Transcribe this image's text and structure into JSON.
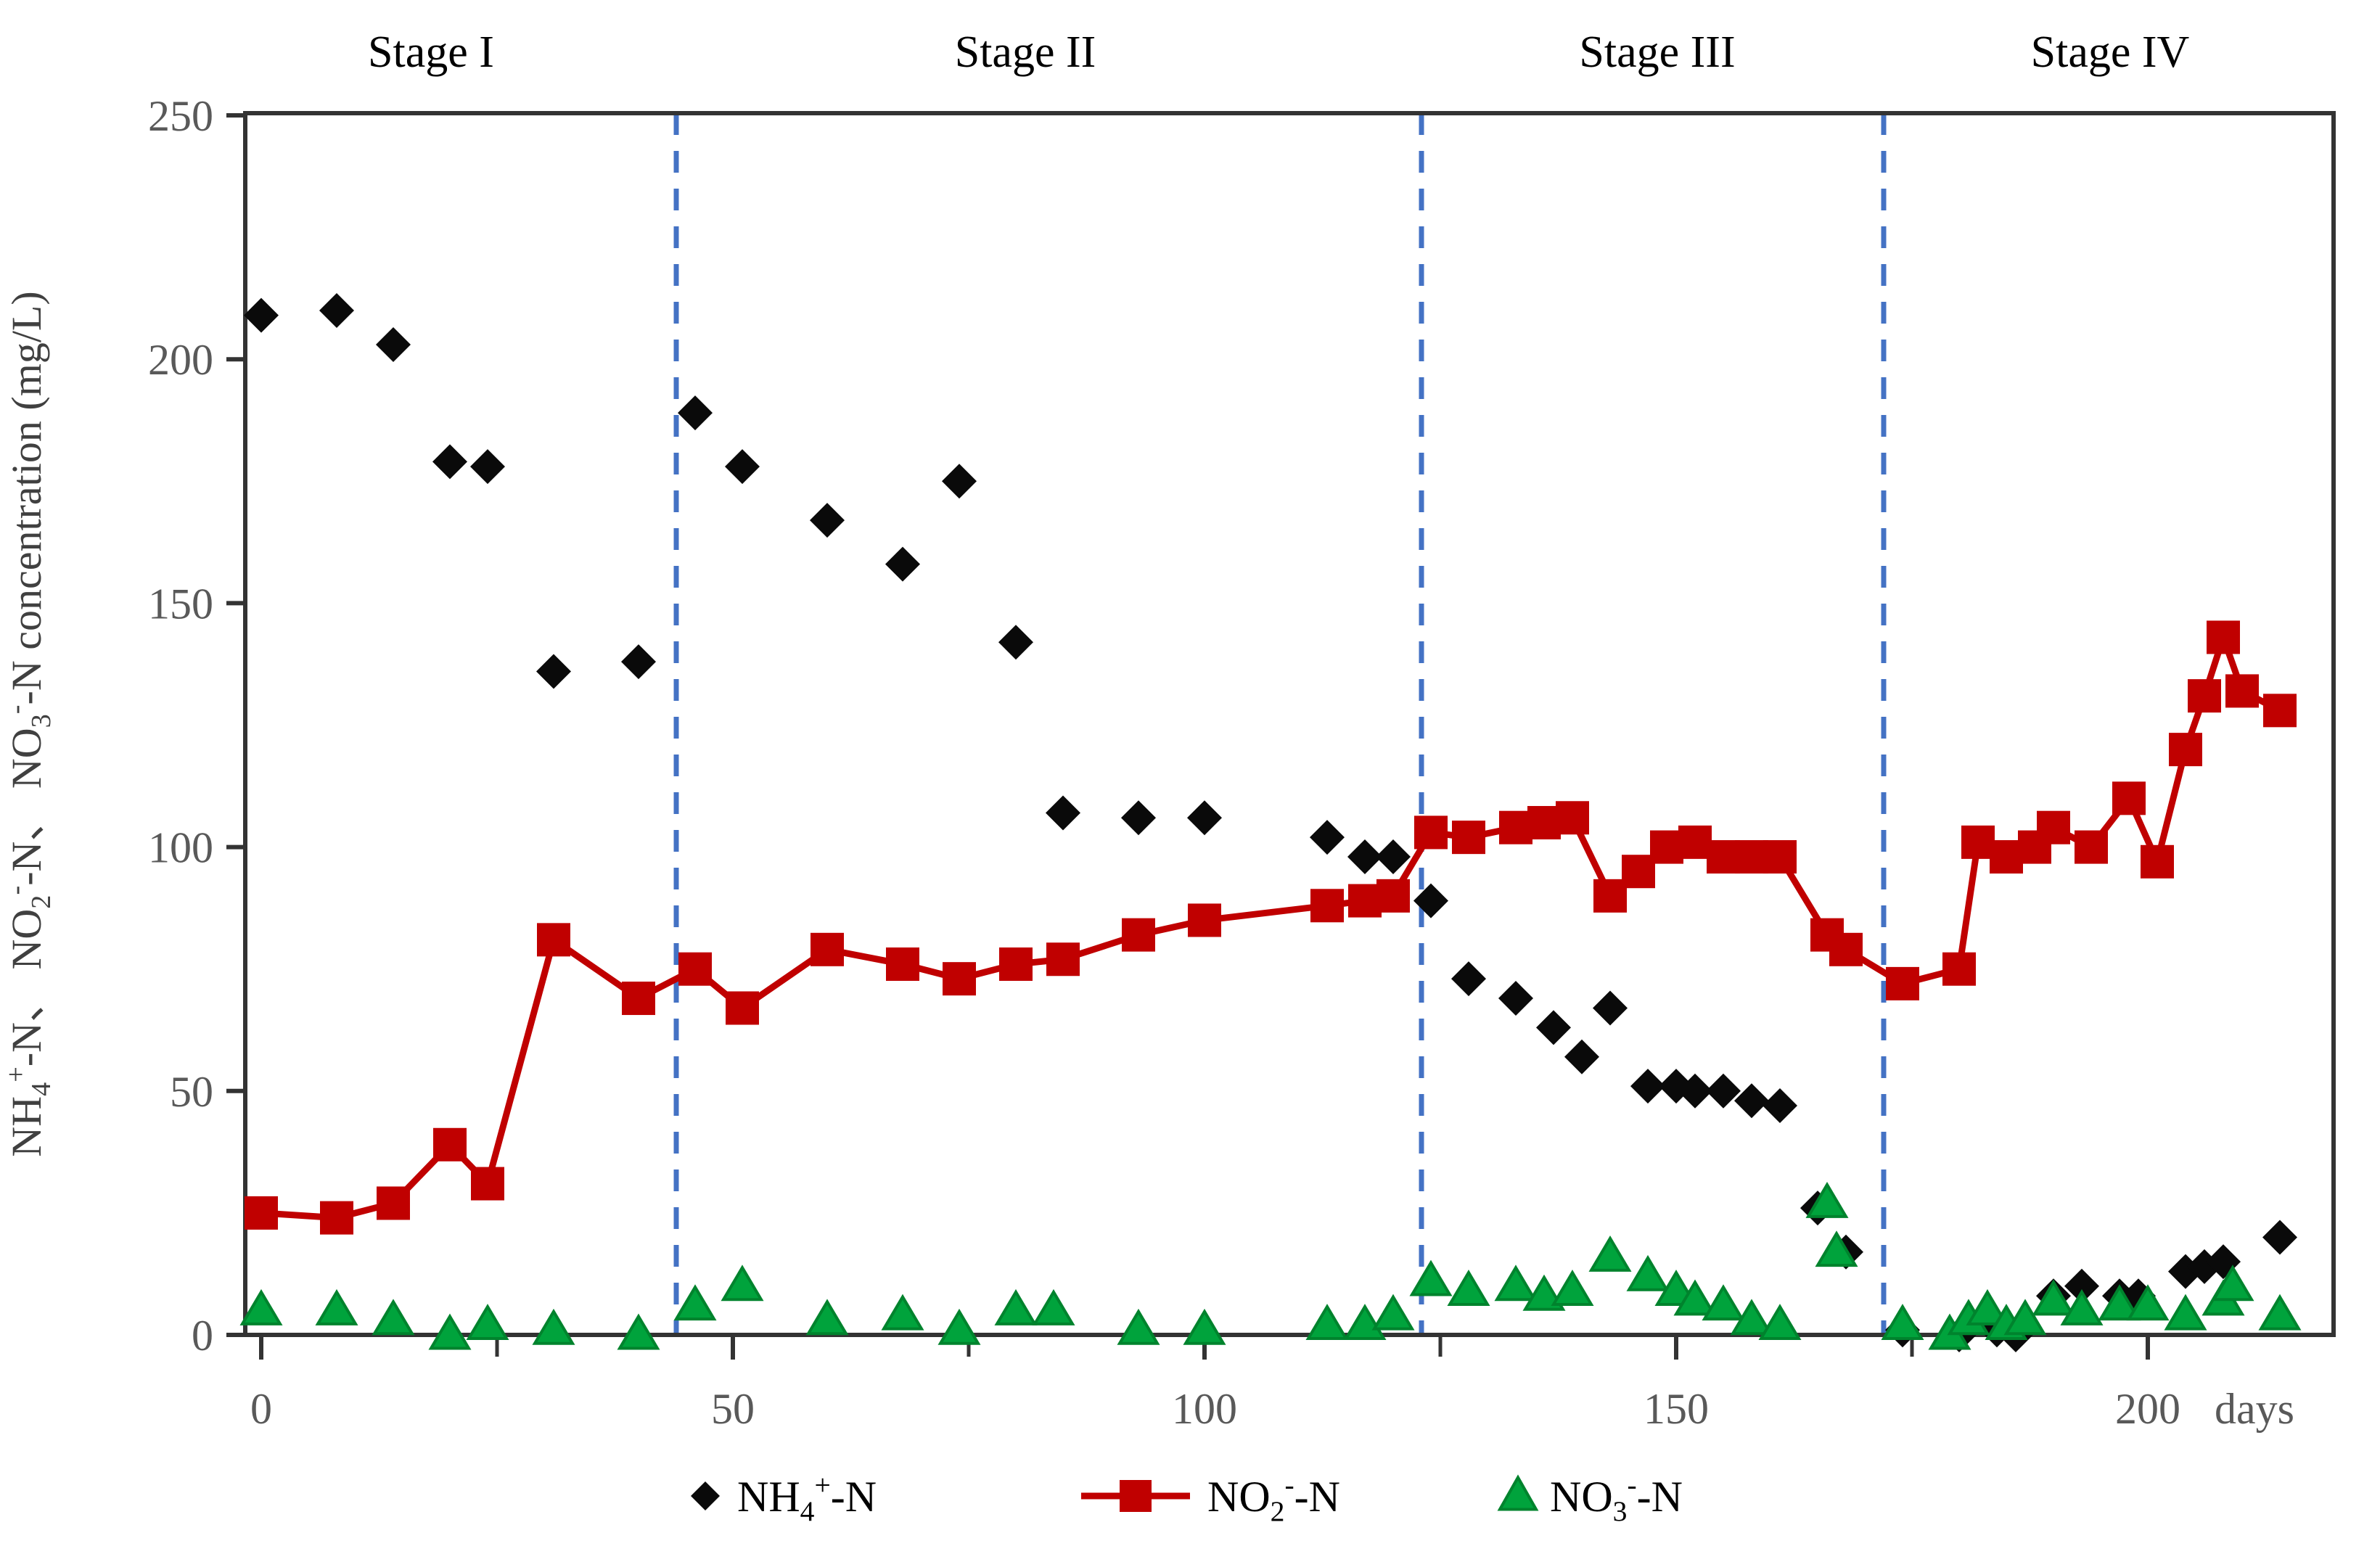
{
  "figure": {
    "kind": "scientific line/scatter chart",
    "background": "#ffffff"
  },
  "chart_data": {
    "type": "scatter",
    "title": "",
    "grid": false,
    "legend_position": "bottom-center",
    "x_axis": {
      "label": "days",
      "ticks": [
        0,
        50,
        100,
        150,
        200
      ],
      "minor_ticks": [
        25,
        75,
        125,
        175
      ],
      "range": [
        0,
        219
      ],
      "tick_color": "#595959"
    },
    "y_axis": {
      "label": "NH4+-N、 NO2--N、 NO3--N concentration (mg/L)",
      "label_rich": [
        [
          "t",
          "NH"
        ],
        [
          "sub",
          "4"
        ],
        [
          "sup",
          "+"
        ],
        [
          "t",
          "-N",
          "、 NO"
        ],
        [
          "sub",
          "2"
        ],
        [
          "sup",
          "-"
        ],
        [
          "t",
          "-N",
          "、 NO"
        ],
        [
          "sub",
          "3"
        ],
        [
          "sup",
          "-"
        ],
        [
          "t",
          "-N concentration (mg/L)"
        ]
      ],
      "ticks": [
        0,
        50,
        100,
        150,
        200,
        250
      ],
      "range": [
        0,
        250
      ],
      "tick_color": "#595959"
    },
    "stages": {
      "labels": [
        "Stage I",
        "Stage II",
        "Stage III",
        "Stage IV"
      ],
      "label_days": [
        18,
        81,
        148,
        196
      ],
      "divider_days": [
        44,
        123,
        172
      ],
      "divider_color": "#4472C4",
      "label_color": "#000000"
    },
    "series": [
      {
        "label": "NH4+-N",
        "label_rich": [
          [
            "t",
            "NH"
          ],
          [
            "sub",
            "4"
          ],
          [
            "sup",
            "+"
          ],
          [
            "t",
            "-N"
          ]
        ],
        "marker": "diamond",
        "color": "#0a0a0a",
        "line": false,
        "points": [
          [
            0,
            209
          ],
          [
            8,
            210
          ],
          [
            14,
            203
          ],
          [
            20,
            179
          ],
          [
            24,
            178
          ],
          [
            31,
            136
          ],
          [
            40,
            138
          ],
          [
            46,
            189
          ],
          [
            51,
            178
          ],
          [
            60,
            167
          ],
          [
            68,
            158
          ],
          [
            74,
            175
          ],
          [
            80,
            142
          ],
          [
            85,
            107
          ],
          [
            93,
            106
          ],
          [
            100,
            106
          ],
          [
            113,
            102
          ],
          [
            117,
            98
          ],
          [
            120,
            98
          ],
          [
            124,
            89
          ],
          [
            128,
            73
          ],
          [
            133,
            69
          ],
          [
            137,
            63
          ],
          [
            140,
            57
          ],
          [
            143,
            67
          ],
          [
            147,
            51
          ],
          [
            150,
            51
          ],
          [
            152,
            50
          ],
          [
            155,
            50
          ],
          [
            158,
            48
          ],
          [
            161,
            47
          ],
          [
            165,
            26
          ],
          [
            168,
            17
          ],
          [
            174,
            1
          ],
          [
            180,
            0
          ],
          [
            184,
            1
          ],
          [
            186,
            0
          ],
          [
            190,
            8
          ],
          [
            193,
            10
          ],
          [
            197,
            8
          ],
          [
            199,
            8
          ],
          [
            204,
            13
          ],
          [
            206,
            14
          ],
          [
            208,
            15
          ],
          [
            214,
            20
          ]
        ]
      },
      {
        "label": "NO2--N",
        "label_rich": [
          [
            "t",
            "NO"
          ],
          [
            "sub",
            "2"
          ],
          [
            "sup",
            "-"
          ],
          [
            "t",
            "-N"
          ]
        ],
        "marker": "square",
        "color": "#C00000",
        "line": true,
        "points": [
          [
            0,
            25
          ],
          [
            8,
            24
          ],
          [
            14,
            27
          ],
          [
            20,
            39
          ],
          [
            24,
            31
          ],
          [
            31,
            81
          ],
          [
            40,
            69
          ],
          [
            46,
            75
          ],
          [
            51,
            67
          ],
          [
            60,
            79
          ],
          [
            68,
            76
          ],
          [
            74,
            73
          ],
          [
            80,
            76
          ],
          [
            85,
            77
          ],
          [
            93,
            82
          ],
          [
            100,
            85
          ],
          [
            113,
            88
          ],
          [
            117,
            89
          ],
          [
            120,
            90
          ],
          [
            124,
            103
          ],
          [
            128,
            102
          ],
          [
            133,
            104
          ],
          [
            136,
            105
          ],
          [
            139,
            106
          ],
          [
            143,
            90
          ],
          [
            146,
            95
          ],
          [
            149,
            100
          ],
          [
            152,
            101
          ],
          [
            155,
            98
          ],
          [
            158,
            98
          ],
          [
            161,
            98
          ],
          [
            166,
            82
          ],
          [
            168,
            79
          ],
          [
            174,
            72
          ],
          [
            180,
            75
          ],
          [
            182,
            101
          ],
          [
            185,
            98
          ],
          [
            188,
            100
          ],
          [
            190,
            104
          ],
          [
            194,
            100
          ],
          [
            198,
            110
          ],
          [
            201,
            97
          ],
          [
            204,
            120
          ],
          [
            206,
            131
          ],
          [
            208,
            143
          ],
          [
            210,
            132
          ],
          [
            214,
            128
          ]
        ]
      },
      {
        "label": "NO3--N",
        "label_rich": [
          [
            "t",
            "NO"
          ],
          [
            "sub",
            "3"
          ],
          [
            "sup",
            "-"
          ],
          [
            "t",
            "-N"
          ]
        ],
        "marker": "triangle",
        "color": "#00A33C",
        "stroke": "#00832D",
        "line": false,
        "points": [
          [
            0,
            5
          ],
          [
            8,
            5
          ],
          [
            14,
            3
          ],
          [
            20,
            0
          ],
          [
            24,
            2
          ],
          [
            31,
            1
          ],
          [
            40,
            0
          ],
          [
            46,
            6
          ],
          [
            51,
            10
          ],
          [
            60,
            3
          ],
          [
            68,
            4
          ],
          [
            74,
            1
          ],
          [
            80,
            5
          ],
          [
            84,
            5
          ],
          [
            93,
            1
          ],
          [
            100,
            1
          ],
          [
            113,
            2
          ],
          [
            117,
            2
          ],
          [
            120,
            4
          ],
          [
            124,
            11
          ],
          [
            128,
            9
          ],
          [
            133,
            10
          ],
          [
            136,
            8
          ],
          [
            139,
            9
          ],
          [
            143,
            16
          ],
          [
            147,
            12
          ],
          [
            150,
            9
          ],
          [
            152,
            7
          ],
          [
            155,
            6
          ],
          [
            158,
            3
          ],
          [
            161,
            2
          ],
          [
            166,
            27
          ],
          [
            167,
            17
          ],
          [
            174,
            2
          ],
          [
            179,
            0
          ],
          [
            181,
            3
          ],
          [
            183,
            5
          ],
          [
            185,
            2
          ],
          [
            187,
            3
          ],
          [
            190,
            7
          ],
          [
            193,
            5
          ],
          [
            197,
            6
          ],
          [
            200,
            6
          ],
          [
            204,
            4
          ],
          [
            208,
            7
          ],
          [
            209,
            10
          ],
          [
            214,
            4
          ]
        ]
      }
    ],
    "axis_color": "#333333"
  }
}
